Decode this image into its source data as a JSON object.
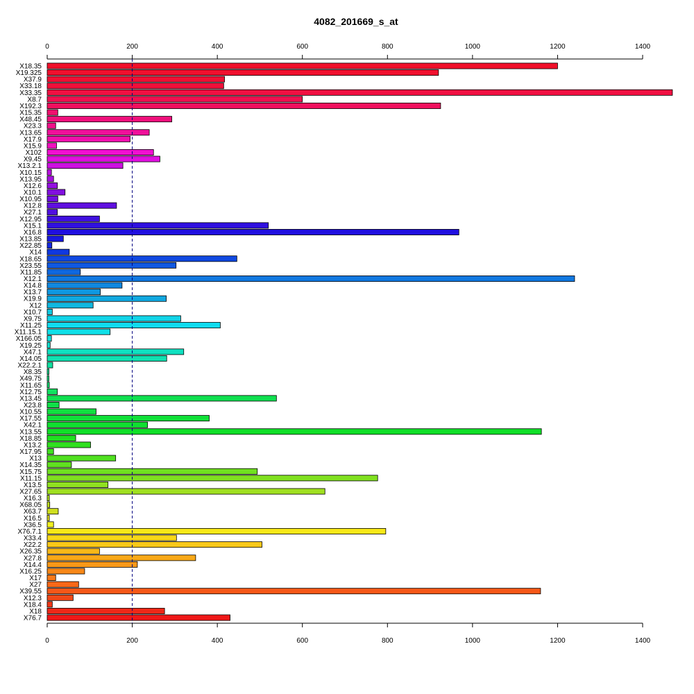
{
  "chart_data": {
    "type": "bar",
    "orientation": "horizontal",
    "title": "4082_201669_s_at",
    "xlabel": "",
    "ylabel": "",
    "xlim": [
      0,
      1470
    ],
    "x_ticks": [
      0,
      200,
      400,
      600,
      800,
      1000,
      1200,
      1400
    ],
    "reference_line": 200,
    "grid": false,
    "legend": "none",
    "categories": [
      "X18.35",
      "X19.325",
      "X37.9",
      "X33.18",
      "X33.35",
      "X8.7",
      "X192.3",
      "X15.35",
      "X48.45",
      "X23.3",
      "X13.65",
      "X17.9",
      "X15.9",
      "X102",
      "X9.45",
      "X13.2.1",
      "X10.15",
      "X13.95",
      "X12.6",
      "X10.1",
      "X10.95",
      "X12.8",
      "X27.1",
      "X12.95",
      "X15.1",
      "X16.8",
      "X13.85",
      "X22.85",
      "X14",
      "X18.65",
      "X23.55",
      "X11.85",
      "X12.1",
      "X14.8",
      "X13.7",
      "X19.9",
      "X12",
      "X10.7",
      "X9.75",
      "X11.25",
      "X11.15.1",
      "X166.05",
      "X19.25",
      "X47.1",
      "X14.05",
      "X22.2.1",
      "X8.35",
      "X49.75",
      "X11.65",
      "X12.75",
      "X13.45",
      "X23.8",
      "X10.55",
      "X17.55",
      "X42.1",
      "X13.55",
      "X18.85",
      "X13.2",
      "X17.95",
      "X13",
      "X14.35",
      "X15.75",
      "X11.15",
      "X13.5",
      "X27.65",
      "X16.3",
      "X68.05",
      "X63.7",
      "X16.5",
      "X36.5",
      "X76.7.1",
      "X33.4",
      "X22.2",
      "X26.35",
      "X27.8",
      "X14.4",
      "X16.25",
      "X17",
      "X27",
      "X39.55",
      "X12.3",
      "X18.4",
      "X18",
      "X76.7"
    ],
    "values": [
      1200,
      920,
      417,
      415,
      1470,
      600,
      925,
      25,
      293,
      20,
      240,
      195,
      22,
      250,
      265,
      178,
      10,
      15,
      24,
      42,
      25,
      163,
      24,
      123,
      520,
      968,
      38,
      11,
      52,
      446,
      303,
      78,
      1240,
      176,
      125,
      280,
      108,
      12,
      314,
      407,
      148,
      10,
      7,
      321,
      281,
      13,
      4,
      4,
      5,
      24,
      539,
      28,
      115,
      381,
      236,
      1162,
      67,
      102,
      15,
      161,
      57,
      494,
      777,
      143,
      653,
      5,
      6,
      26,
      5,
      15,
      796,
      304,
      505,
      123,
      349,
      212,
      88,
      20,
      74,
      1160,
      61,
      12,
      276,
      430
    ],
    "colors": [
      "#f0102a",
      "#f0102e",
      "#f01034",
      "#f0103a",
      "#f01042",
      "#f01050",
      "#f0105e",
      "#f0106e",
      "#f0107c",
      "#f0108a",
      "#f0109a",
      "#f010ac",
      "#f010be",
      "#f010d0",
      "#e010e0",
      "#cc10e0",
      "#b810e0",
      "#a610e0",
      "#9410e0",
      "#8210e0",
      "#7010e0",
      "#6010e0",
      "#5010e0",
      "#4010e0",
      "#3010e0",
      "#2010e0",
      "#1818e0",
      "#1428e0",
      "#1038e0",
      "#1048e0",
      "#1058e0",
      "#1068e0",
      "#1078e0",
      "#1088e0",
      "#1098e0",
      "#10a8e0",
      "#10b8e0",
      "#10c8e0",
      "#10d4e8",
      "#10dcf0",
      "#10e0e8",
      "#10e0e0",
      "#10e0d0",
      "#10e0c0",
      "#10e0b0",
      "#10e0a0",
      "#10e090",
      "#10e080",
      "#10e070",
      "#10e060",
      "#10e050",
      "#10e048",
      "#10e040",
      "#10e038",
      "#10e030",
      "#10e028",
      "#20e020",
      "#30e020",
      "#40e020",
      "#50e020",
      "#60e020",
      "#70e020",
      "#80e020",
      "#90e020",
      "#a0e020",
      "#b0e020",
      "#c0e020",
      "#d0e020",
      "#e0e020",
      "#f0f020",
      "#f8e818",
      "#f8d818",
      "#f8c818",
      "#f8b818",
      "#f8a818",
      "#f89818",
      "#f88818",
      "#f87818",
      "#f86818",
      "#f85818",
      "#f04818",
      "#f03818",
      "#f02818",
      "#f01818"
    ]
  }
}
